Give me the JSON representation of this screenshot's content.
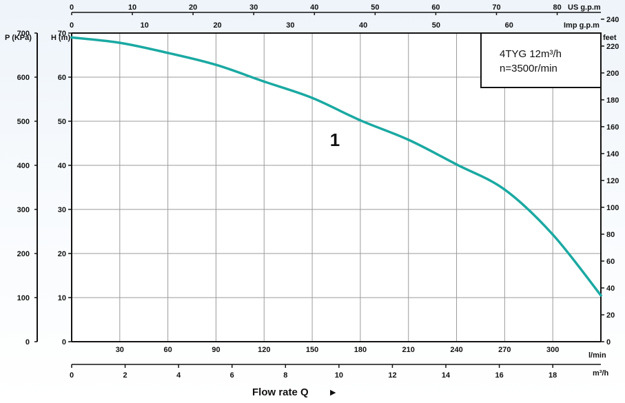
{
  "chart_data": {
    "type": "line",
    "title_lines": [
      "4TYG 12m³/h",
      "n=3500r/min"
    ],
    "curve_label": "1",
    "xlabel": "Flow rate Q",
    "series": [
      {
        "name": "1",
        "color": "#1aa9a2",
        "x": [
          0,
          30,
          60,
          90,
          120,
          150,
          180,
          210,
          240,
          270,
          300,
          330
        ],
        "y": [
          69,
          67.8,
          65.5,
          62.8,
          59,
          55.3,
          50.2,
          45.8,
          40.2,
          34.5,
          24.3,
          10.5
        ]
      }
    ],
    "axes": {
      "flow_lmin": {
        "unit": "l/min",
        "min": 0,
        "max": 330,
        "ticks": [
          "30",
          "60",
          "90",
          "120",
          "150",
          "180",
          "210",
          "240",
          "270",
          "300"
        ]
      },
      "flow_m3h": {
        "unit": "m³/h",
        "min": 0,
        "max": 19.8,
        "ticks": [
          "0",
          "2",
          "4",
          "6",
          "8",
          "10",
          "12",
          "14",
          "16",
          "18"
        ]
      },
      "flow_usgpm": {
        "unit": "US g.p.m",
        "min": 0,
        "max": 87.2,
        "ticks": [
          "0",
          "10",
          "20",
          "30",
          "40",
          "50",
          "60",
          "70",
          "80"
        ]
      },
      "flow_impgpm": {
        "unit": "Imp g.p.m",
        "min": 0,
        "max": 72.6,
        "ticks": [
          "0",
          "10",
          "20",
          "30",
          "40",
          "50",
          "60"
        ]
      },
      "head_m": {
        "unit": "H (m)",
        "min": 0,
        "max": 70,
        "ticks": [
          "0",
          "10",
          "20",
          "30",
          "40",
          "50",
          "60",
          "70"
        ]
      },
      "pressure_kpa": {
        "unit": "P (KPa)",
        "min": 0,
        "max": 700,
        "ticks": [
          "0",
          "100",
          "200",
          "300",
          "400",
          "500",
          "600",
          "700"
        ]
      },
      "head_feet": {
        "unit": "feet",
        "min": 0,
        "max": 240,
        "ticks": [
          "0",
          "20",
          "40",
          "60",
          "80",
          "100",
          "120",
          "140",
          "160",
          "180",
          "200",
          "220",
          "240"
        ]
      }
    },
    "grid": true,
    "legend_placement": "top-right"
  },
  "arrow_glyph": "▶"
}
